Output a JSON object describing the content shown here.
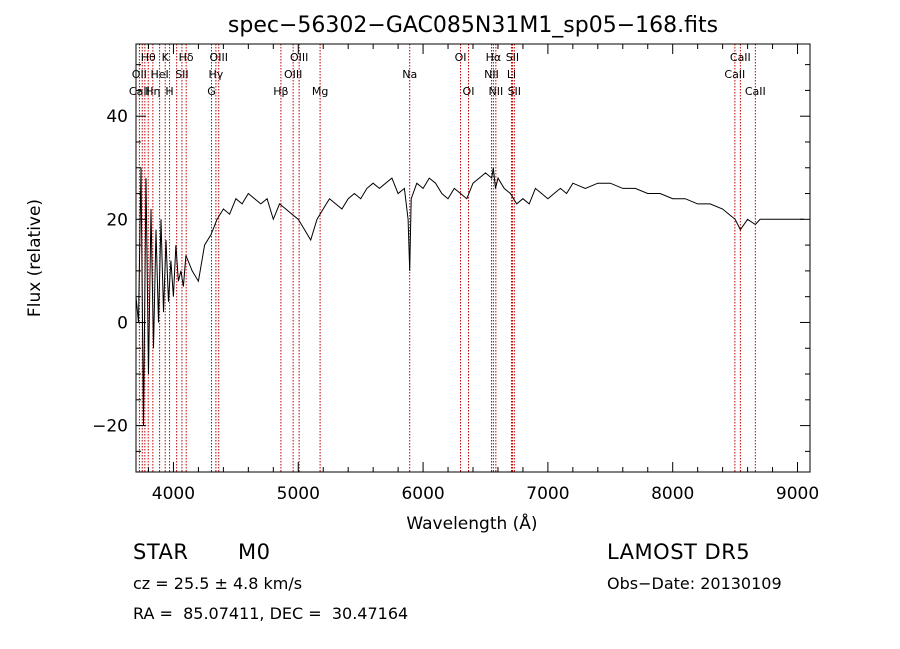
{
  "chart_data": {
    "type": "line",
    "title": "spec−56302−GAC085N31M1_sp05−168.fits",
    "xlabel": "Wavelength (Å)",
    "ylabel": "Flux (relative)",
    "xlim": [
      3700,
      9100
    ],
    "ylim": [
      -29,
      54
    ],
    "x_ticks": [
      4000,
      5000,
      6000,
      7000,
      8000,
      9000
    ],
    "y_ticks": [
      -20,
      0,
      20,
      40
    ],
    "x_tick_labels": [
      "4000",
      "5000",
      "6000",
      "7000",
      "8000",
      "9000"
    ],
    "y_tick_labels": [
      "−20",
      "0",
      "20",
      "40"
    ],
    "series": [
      {
        "x": [
          3700,
          3720,
          3740,
          3760,
          3780,
          3800,
          3820,
          3840,
          3860,
          3880,
          3900,
          3920,
          3940,
          3960,
          3980,
          4000,
          4020,
          4040,
          4060,
          4080,
          4100,
          4150,
          4200,
          4250,
          4300,
          4350,
          4400,
          4450,
          4500,
          4550,
          4600,
          4650,
          4700,
          4750,
          4800,
          4850,
          4900,
          4950,
          5000,
          5050,
          5100,
          5150,
          5200,
          5250,
          5300,
          5350,
          5400,
          5450,
          5500,
          5550,
          5600,
          5650,
          5700,
          5750,
          5800,
          5850,
          5880,
          5893,
          5905,
          5950,
          6000,
          6050,
          6100,
          6150,
          6200,
          6250,
          6300,
          6350,
          6400,
          6450,
          6500,
          6550,
          6563,
          6580,
          6600,
          6650,
          6700,
          6750,
          6800,
          6850,
          6900,
          6950,
          7000,
          7050,
          7100,
          7150,
          7200,
          7300,
          7400,
          7500,
          7600,
          7700,
          7800,
          7900,
          8000,
          8100,
          8200,
          8300,
          8400,
          8450,
          8500,
          8542,
          8600,
          8662,
          8700,
          8800,
          8900,
          9000,
          9050
        ],
        "y": [
          5,
          0,
          30,
          -20,
          28,
          -10,
          22,
          -5,
          18,
          0,
          20,
          2,
          16,
          4,
          12,
          5,
          15,
          8,
          10,
          7,
          13,
          10,
          8,
          15,
          17,
          20,
          22,
          21,
          24,
          23,
          25,
          24,
          23,
          24,
          20,
          23,
          22,
          21,
          20,
          18,
          16,
          20,
          22,
          24,
          23,
          22,
          24,
          25,
          24,
          26,
          27,
          26,
          27,
          28,
          25,
          26,
          20,
          10,
          24,
          27,
          26,
          28,
          27,
          25,
          24,
          26,
          25,
          24,
          27,
          28,
          29,
          28,
          30,
          26,
          28,
          26,
          25,
          23,
          24,
          23,
          26,
          25,
          24,
          25,
          26,
          25,
          27,
          26,
          27,
          27,
          26,
          26,
          25,
          25,
          24,
          24,
          23,
          23,
          22,
          21,
          20,
          18,
          20,
          19,
          20,
          20,
          20,
          20,
          20
        ]
      }
    ],
    "lines": {
      "Ca II K": 3934,
      "Ca II H": 3969,
      "Balmer": [
        3750,
        3771,
        3798,
        3835,
        3889,
        4102,
        4340,
        4861,
        6563
      ],
      "He I": 4026,
      "S II": 4068,
      "G": 4305,
      "O III": [
        4363,
        4959,
        5007
      ],
      "Mg": 5175,
      "Na": 5893,
      "O I": [
        6300,
        6364
      ],
      "N II": [
        6548,
        6583
      ],
      "Li": 6708,
      "S II red": [
        6716,
        6731
      ],
      "Ca II IR": [
        8498,
        8542,
        8662
      ]
    },
    "line_labels": [
      {
        "text": "Hθ",
        "wl": 3798,
        "row": 0
      },
      {
        "text": "K",
        "wl": 3934,
        "row": 0
      },
      {
        "text": "Hδ",
        "wl": 4102,
        "row": 0
      },
      {
        "text": "OIII",
        "wl": 4363,
        "row": 0
      },
      {
        "text": "OIII",
        "wl": 5007,
        "row": 0
      },
      {
        "text": "OI",
        "wl": 6300,
        "row": 0
      },
      {
        "text": "Hα",
        "wl": 6563,
        "row": 0
      },
      {
        "text": "SII",
        "wl": 6716,
        "row": 0
      },
      {
        "text": "CaII",
        "wl": 8542,
        "row": 0
      },
      {
        "text": "OII",
        "wl": 3727,
        "row": 1
      },
      {
        "text": "HeI",
        "wl": 3889,
        "row": 1
      },
      {
        "text": "SII",
        "wl": 4068,
        "row": 1
      },
      {
        "text": "Hγ",
        "wl": 4340,
        "row": 1
      },
      {
        "text": "OIII",
        "wl": 4959,
        "row": 1
      },
      {
        "text": "Na",
        "wl": 5893,
        "row": 1
      },
      {
        "text": "NII",
        "wl": 6548,
        "row": 1
      },
      {
        "text": "Li",
        "wl": 6708,
        "row": 1
      },
      {
        "text": "CaII",
        "wl": 8498,
        "row": 1
      },
      {
        "text": "CaII",
        "wl": 3727,
        "row": 2
      },
      {
        "text": "Hη",
        "wl": 3835,
        "row": 2
      },
      {
        "text": "H",
        "wl": 3969,
        "row": 2
      },
      {
        "text": "G",
        "wl": 4305,
        "row": 2
      },
      {
        "text": "Hβ",
        "wl": 4861,
        "row": 2
      },
      {
        "text": "Mg",
        "wl": 5175,
        "row": 2
      },
      {
        "text": "OI",
        "wl": 6364,
        "row": 2
      },
      {
        "text": "NII",
        "wl": 6583,
        "row": 2
      },
      {
        "text": "SII",
        "wl": 6731,
        "row": 2
      },
      {
        "text": "CaII",
        "wl": 8662,
        "row": 2
      }
    ],
    "marker_wavelengths": [
      3727,
      3750,
      3771,
      3798,
      3835,
      3889,
      3934,
      3969,
      4026,
      4068,
      4102,
      4305,
      4340,
      4363,
      4861,
      4959,
      5007,
      5175,
      5893,
      6300,
      6364,
      6548,
      6563,
      6583,
      6708,
      6716,
      6731,
      8498,
      8542,
      8662
    ],
    "marker_color": "#c00000",
    "line_color": "#000000"
  },
  "info": {
    "class": "STAR",
    "subclass": "M0",
    "survey": "LAMOST DR5",
    "cz": "cz = 25.5 ± 4.8 km/s",
    "obs_date": "Obs−Date: 20130109",
    "radec": "RA =  85.07411, DEC =  30.47164"
  }
}
